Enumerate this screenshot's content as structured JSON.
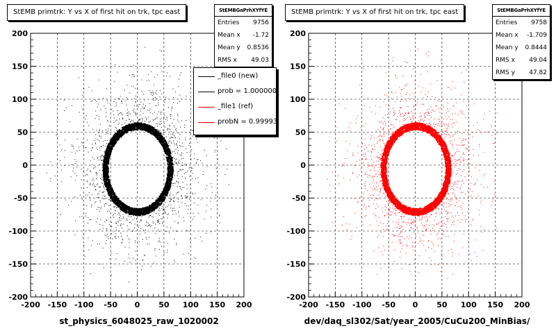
{
  "chart_data": [
    {
      "type": "scatter",
      "title": "StEMB primtrk: Y vs X of first hit on trk, tpc east",
      "xlabel": "st_physics_6048025_raw_1020002",
      "ylabel": "",
      "xlim": [
        -200,
        200
      ],
      "ylim": [
        -200,
        200
      ],
      "xticks": [
        "-200",
        "-150",
        "-100",
        "-50",
        "0",
        "50",
        "100",
        "150",
        "200"
      ],
      "yticks": [
        "200",
        "150",
        "100",
        "50",
        "0",
        "-50",
        "-100",
        "-150",
        "-200"
      ],
      "grid": true,
      "color": "#000000",
      "ring": {
        "cx": 0,
        "cy": -5,
        "rx": 56,
        "ry": 60
      },
      "stats": {
        "header": "StEMBGaPrhXYfYE",
        "rows": [
          {
            "label": "Entries",
            "value": "9756"
          },
          {
            "label": "Mean x",
            "value": "-1.72"
          },
          {
            "label": "Mean y",
            "value": "0.8536"
          },
          {
            "label": "RMS x",
            "value": "49.03"
          }
        ]
      },
      "legend": {
        "placement": "top-right",
        "entries": [
          {
            "label": "_file0 (new)",
            "color": "#000000"
          },
          {
            "label": "prob = 1.000000",
            "color": "#000000"
          },
          {
            "label": "_file1 (ref)",
            "color": "#ff0000"
          },
          {
            "label": "probN = 0.99993",
            "color": "#ff0000"
          }
        ]
      }
    },
    {
      "type": "scatter",
      "title": "StEMB primtrk: Y vs X of first hit on trk, tpc east",
      "xlabel": "dev/daq_sl302/Sat/year_2005/CuCu200_MinBias/",
      "ylabel": "",
      "xlim": [
        -200,
        200
      ],
      "ylim": [
        -200,
        200
      ],
      "xticks": [
        "-200",
        "-150",
        "-100",
        "-50",
        "0",
        "50",
        "100",
        "150",
        "200"
      ],
      "yticks": [
        "200",
        "150",
        "100",
        "50",
        "0",
        "-50",
        "-100",
        "-150",
        "-200"
      ],
      "grid": true,
      "color": "#ff0000",
      "ring": {
        "cx": 0,
        "cy": -5,
        "rx": 56,
        "ry": 60
      },
      "stats": {
        "header": "StEMBGaPrhXYfYE",
        "rows": [
          {
            "label": "Entries",
            "value": "9758"
          },
          {
            "label": "Mean x",
            "value": "-1.709"
          },
          {
            "label": "Mean y",
            "value": "0.8444"
          },
          {
            "label": "RMS x",
            "value": "49.04"
          },
          {
            "label": "RMS y",
            "value": "47.82"
          }
        ]
      }
    }
  ]
}
